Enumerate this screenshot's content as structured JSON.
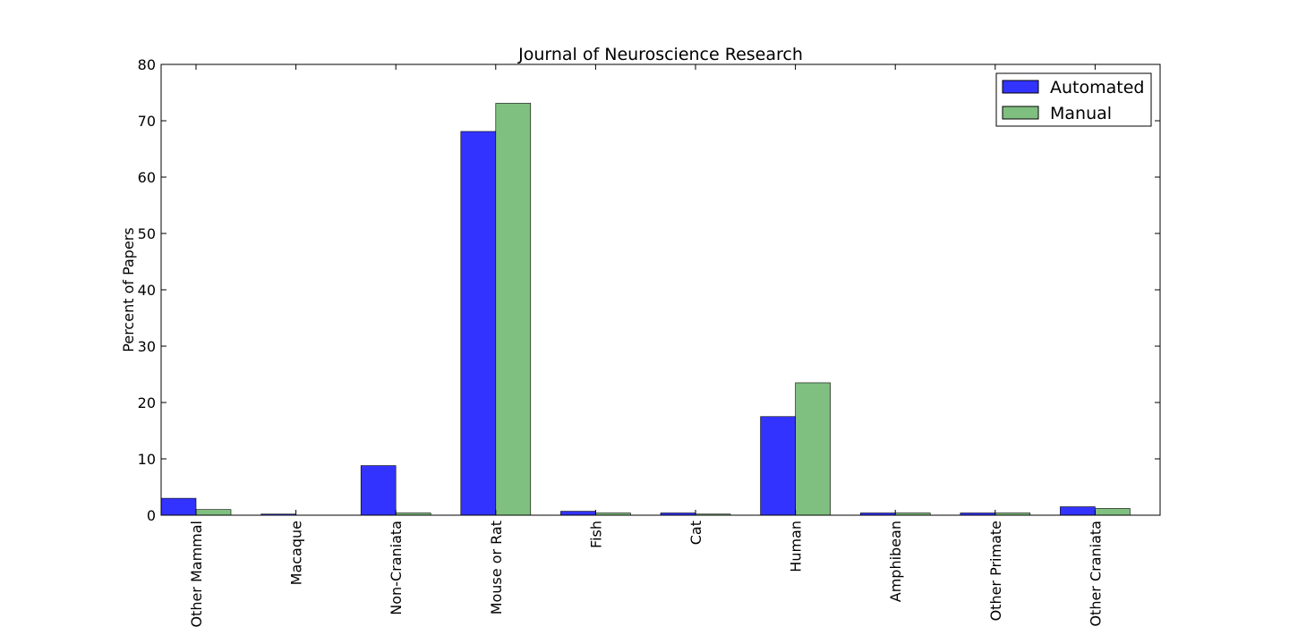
{
  "chart_data": {
    "type": "bar",
    "title": "Journal of Neuroscience Research",
    "xlabel": "",
    "ylabel": "Percent of Papers",
    "ylim": [
      0,
      80
    ],
    "yticks": [
      0,
      10,
      20,
      30,
      40,
      50,
      60,
      70,
      80
    ],
    "categories": [
      "Other Mammal",
      "Macaque",
      "Non-Craniata",
      "Mouse or Rat",
      "Fish",
      "Cat",
      "Human",
      "Amphibean",
      "Other Primate",
      "Other Craniata"
    ],
    "series": [
      {
        "name": "Automated",
        "color": "#3333ff",
        "values": [
          3.0,
          0.2,
          8.8,
          68.1,
          0.7,
          0.4,
          17.5,
          0.4,
          0.4,
          1.5
        ]
      },
      {
        "name": "Manual",
        "color": "#7fbf7f",
        "values": [
          1.0,
          0.0,
          0.4,
          73.1,
          0.4,
          0.2,
          23.5,
          0.4,
          0.4,
          1.2
        ]
      }
    ],
    "grid": false,
    "legend_position": "top-right"
  }
}
